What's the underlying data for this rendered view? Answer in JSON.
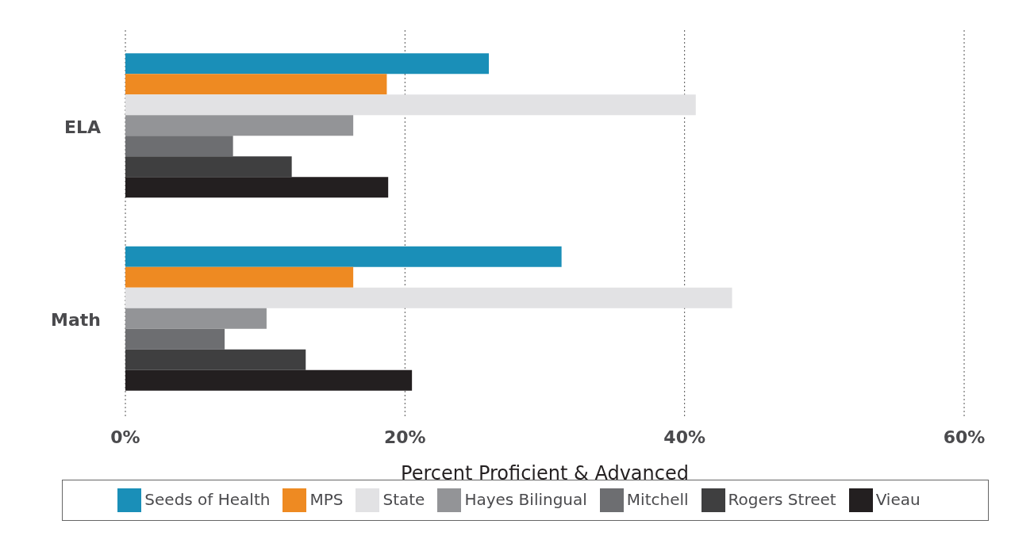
{
  "chart_data": {
    "type": "bar",
    "orientation": "horizontal",
    "categories": [
      "ELA",
      "Math"
    ],
    "series": [
      {
        "name": "Seeds of Health",
        "color": "#1a8fb8",
        "values": [
          26,
          31.2
        ]
      },
      {
        "name": "MPS",
        "color": "#ee8a22",
        "values": [
          18.7,
          16.3
        ]
      },
      {
        "name": "State",
        "color": "#e2e2e4",
        "values": [
          40.8,
          43.4
        ]
      },
      {
        "name": "Hayes Bilingual",
        "color": "#939497",
        "values": [
          16.3,
          10.1
        ]
      },
      {
        "name": "Mitchell",
        "color": "#6d6e71",
        "values": [
          7.7,
          7.1
        ]
      },
      {
        "name": "Rogers Street",
        "color": "#3f3f40",
        "values": [
          11.9,
          12.9
        ]
      },
      {
        "name": "Vieau",
        "color": "#231f20",
        "values": [
          18.8,
          20.5
        ]
      }
    ],
    "xlim": [
      0,
      60
    ],
    "xticks": [
      {
        "value": 0,
        "label": "0%"
      },
      {
        "value": 20,
        "label": "20%"
      },
      {
        "value": 40,
        "label": "40%"
      },
      {
        "value": 60,
        "label": "60%"
      }
    ],
    "xlabel": "Percent Proficient & Advanced",
    "grid": "x",
    "legend": "bottom"
  }
}
